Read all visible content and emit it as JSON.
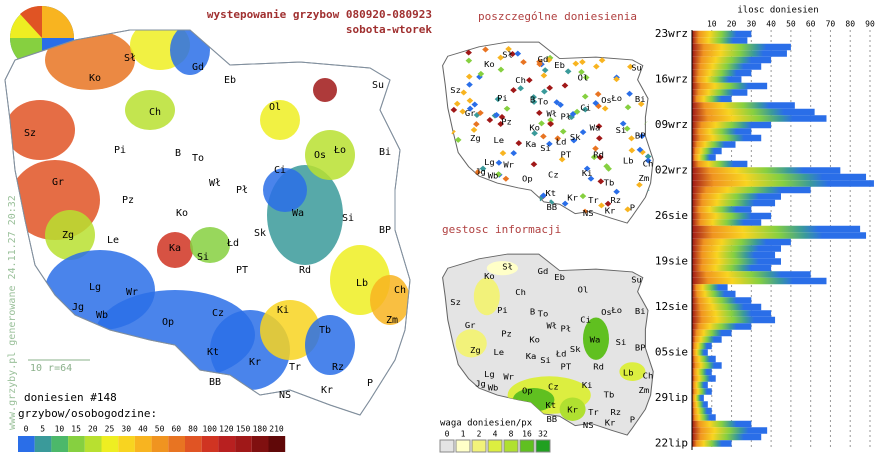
{
  "header": {
    "title": "wystepowanie grzybow 080920-080923",
    "subtitle": "sobota-wtorek"
  },
  "map": {
    "labels": [
      "Ko",
      "Sł",
      "Gd",
      "Eb",
      "Su",
      "Ch",
      "Ol",
      "Sz",
      "Pi",
      "B",
      "To",
      "Os",
      "Ło",
      "Bi",
      "Gr",
      "Wł",
      "Pł",
      "Ci",
      "Pz",
      "Ko",
      "Wa",
      "Si",
      "Zg",
      "Le",
      "Ka",
      "Łd",
      "Sk",
      "BP",
      "Si",
      "PT",
      "Rd",
      "Lb",
      "Lg",
      "Wr",
      "Ch",
      "Jg",
      "Wb",
      "Op",
      "Cz",
      "Ki",
      "Zm",
      "Tb",
      "Kt",
      "Kr",
      "Tr",
      "Rz",
      "BB",
      "NS",
      "Kr",
      "P"
    ],
    "scale": "10 r=64",
    "reports": "doniesien #148",
    "credit": "www.grzyby.pl generowane 24.11.27 20:32"
  },
  "legend": {
    "title": "grzybow/osobogodzine:",
    "ticks": [
      0,
      5,
      10,
      15,
      20,
      25,
      30,
      40,
      50,
      60,
      80,
      100,
      120,
      150,
      180,
      210
    ],
    "colors": [
      "#2a6ee8",
      "#3a9a9a",
      "#4cb86a",
      "#86d040",
      "#b8e030",
      "#eeee22",
      "#f8d420",
      "#f8b420",
      "#f09420",
      "#e87422",
      "#e05424",
      "#d03422",
      "#b82020",
      "#a01818",
      "#801010",
      "#600808"
    ]
  },
  "points_map": {
    "title": "poszczególne doniesienia"
  },
  "density_map": {
    "title": "gestosc informacji",
    "legend_title": "waga doniesien/px",
    "ticks": [
      0,
      1,
      2,
      4,
      8,
      16,
      32
    ],
    "colors": [
      "#e4e4e4",
      "#ffffc8",
      "#f2f27a",
      "#dcee40",
      "#b0e030",
      "#60c020",
      "#20a020"
    ]
  },
  "chart_data": {
    "type": "bar",
    "title": "ilosc doniesien",
    "categories": [
      "23wrz",
      null,
      null,
      null,
      null,
      null,
      null,
      "16wrz",
      null,
      null,
      null,
      null,
      null,
      null,
      "09wrz",
      null,
      null,
      null,
      null,
      null,
      null,
      "02wrz",
      null,
      null,
      null,
      null,
      null,
      null,
      "26sie",
      null,
      null,
      null,
      null,
      null,
      null,
      "19sie",
      null,
      null,
      null,
      null,
      null,
      null,
      "12sie",
      null,
      null,
      null,
      null,
      null,
      null,
      "05sie",
      null,
      null,
      null,
      null,
      null,
      null,
      "29lip",
      null,
      null,
      null,
      null,
      null,
      null,
      "22lip"
    ],
    "values": [
      30,
      28,
      50,
      48,
      40,
      35,
      30,
      25,
      38,
      28,
      20,
      52,
      62,
      68,
      40,
      30,
      35,
      22,
      15,
      12,
      28,
      75,
      88,
      92,
      60,
      45,
      42,
      30,
      40,
      35,
      85,
      88,
      50,
      45,
      42,
      45,
      40,
      60,
      68,
      18,
      22,
      30,
      35,
      40,
      42,
      30,
      20,
      15,
      10,
      8,
      12,
      15,
      10,
      12,
      8,
      10,
      6,
      8,
      10,
      12,
      30,
      38,
      35,
      20
    ],
    "xlim": [
      0,
      90
    ],
    "xticks": [
      10,
      20,
      30,
      40,
      50,
      60,
      70,
      80,
      90
    ],
    "grid": true
  }
}
